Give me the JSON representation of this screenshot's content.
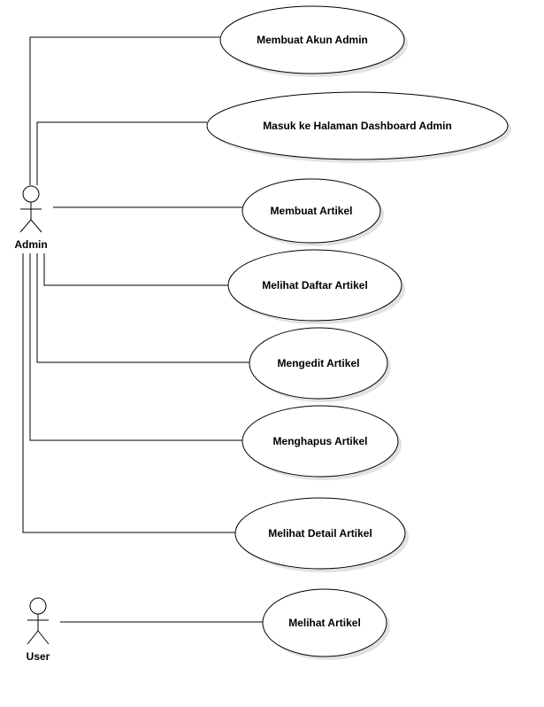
{
  "actors": [
    {
      "id": "admin",
      "label": "Admin"
    },
    {
      "id": "user",
      "label": "User"
    }
  ],
  "use_cases": [
    {
      "id": "uc1",
      "label": "Membuat Akun Admin",
      "actor": "admin"
    },
    {
      "id": "uc2",
      "label": "Masuk ke Halaman Dashboard Admin",
      "actor": "admin"
    },
    {
      "id": "uc3",
      "label": "Membuat Artikel",
      "actor": "admin"
    },
    {
      "id": "uc4",
      "label": "Melihat Daftar Artikel",
      "actor": "admin"
    },
    {
      "id": "uc5",
      "label": "Mengedit Artikel",
      "actor": "admin"
    },
    {
      "id": "uc6",
      "label": "Menghapus Artikel",
      "actor": "admin"
    },
    {
      "id": "uc7",
      "label": "Melihat Detail Artikel",
      "actor": "admin"
    },
    {
      "id": "uc8",
      "label": "Melihat Artikel",
      "actor": "user"
    }
  ],
  "colors": {
    "stroke": "#000000",
    "fill": "#ffffff",
    "shadow": "#cfcfcf"
  }
}
